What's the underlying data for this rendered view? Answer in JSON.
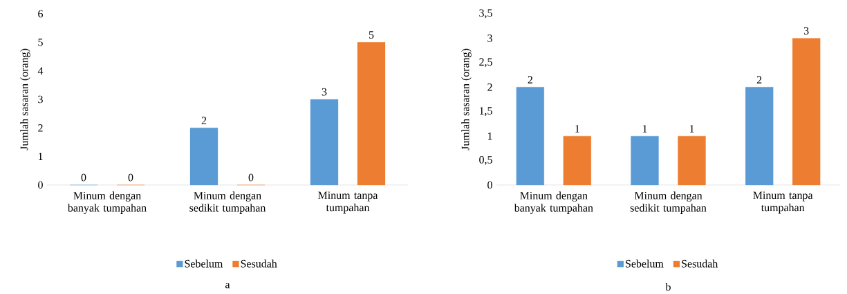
{
  "chart_data": [
    {
      "type": "bar",
      "ylabel": "Jumlah sasaran (orang)",
      "categories": [
        "Minum dengan banyak tumpahan",
        "Minum dengan sedikit tumpahan",
        "Minum tanpa tumpahan"
      ],
      "series": [
        {
          "name": "Sebelum",
          "color": "#5b9bd5",
          "values": [
            0,
            2,
            3
          ]
        },
        {
          "name": "Sesudah",
          "color": "#ed7d31",
          "values": [
            0,
            0,
            5
          ]
        }
      ],
      "ylim": [
        0,
        6
      ],
      "yticks": [
        0,
        1,
        2,
        3,
        4,
        5,
        6
      ],
      "data_labels": true,
      "legend": "bottom",
      "annotations": [
        "a"
      ]
    },
    {
      "type": "bar",
      "ylabel": "Jumlah sasaran (orang)",
      "categories": [
        "Minum dengan banyak tumpahan",
        "Minum dengan sedikit tumpahan",
        "Minum tanpa tumpahan"
      ],
      "series": [
        {
          "name": "Sebelum",
          "color": "#5b9bd5",
          "values": [
            2,
            1,
            2
          ]
        },
        {
          "name": "Sesudah",
          "color": "#ed7d31",
          "values": [
            1,
            1,
            3
          ]
        }
      ],
      "ylim": [
        0,
        3.5
      ],
      "yticks": [
        0,
        {
          "value": 0.5,
          "label": "0,5"
        },
        1,
        {
          "value": 1.5,
          "label": "1,5"
        },
        2,
        {
          "value": 2.5,
          "label": "2,5"
        },
        3,
        {
          "value": 3.5,
          "label": "3,5"
        }
      ],
      "data_labels": true,
      "legend": "bottom",
      "annotations": [
        "b"
      ]
    }
  ]
}
